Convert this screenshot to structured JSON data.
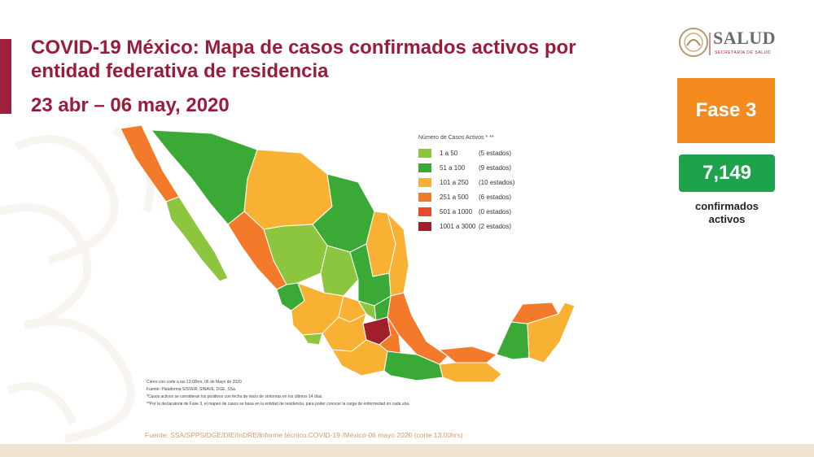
{
  "header": {
    "title": "COVID-19 México: Mapa de casos confirmados activos por entidad federativa de residencia",
    "date_range": "23 abr – 06 may, 2020"
  },
  "logo": {
    "text": "SALUD",
    "subtext": "SECRETARÍA DE SALUD"
  },
  "status": {
    "phase": "Fase 3",
    "active_count": "7,149",
    "active_label_1": "confirmados",
    "active_label_2": "activos"
  },
  "legend": {
    "title": "Número de Casos Activos * **",
    "items": [
      {
        "range": "1 a 50",
        "states": "(5 estados)",
        "color": "#8cc63f"
      },
      {
        "range": "51 a 100",
        "states": "(9 estados)",
        "color": "#3aa935"
      },
      {
        "range": "101 a 250",
        "states": "(10 estados)",
        "color": "#f8b133"
      },
      {
        "range": "251 a 500",
        "states": "(6 estados)",
        "color": "#f37a2b"
      },
      {
        "range": "501 a 1000",
        "states": "(0 estados)",
        "color": "#e84a2b"
      },
      {
        "range": "1001 a 3000",
        "states": "(2 estados)",
        "color": "#a01f2b"
      }
    ]
  },
  "notes": [
    "Cierre con corte a las 13:00hrs, 06 de Mayo de 2020",
    "Fuente: Plataforma SISVER, SINAVE, DGE, SSa.",
    "*Casos activos se consideran los positivos con fecha de inicio de síntomas en los últimos 14 días.",
    "**Por la declaratoria de Fase 3, el mapeo de casos se basa en la entidad de residencia, para poder conocer la carga de enfermedad en cada una."
  ],
  "source": "Fuente: SSA/SPPS/DGE/DIE/InDRE/Informe técnico.COVID-19 /México-06 mayo 2020 (corte 13:00hrs)"
}
